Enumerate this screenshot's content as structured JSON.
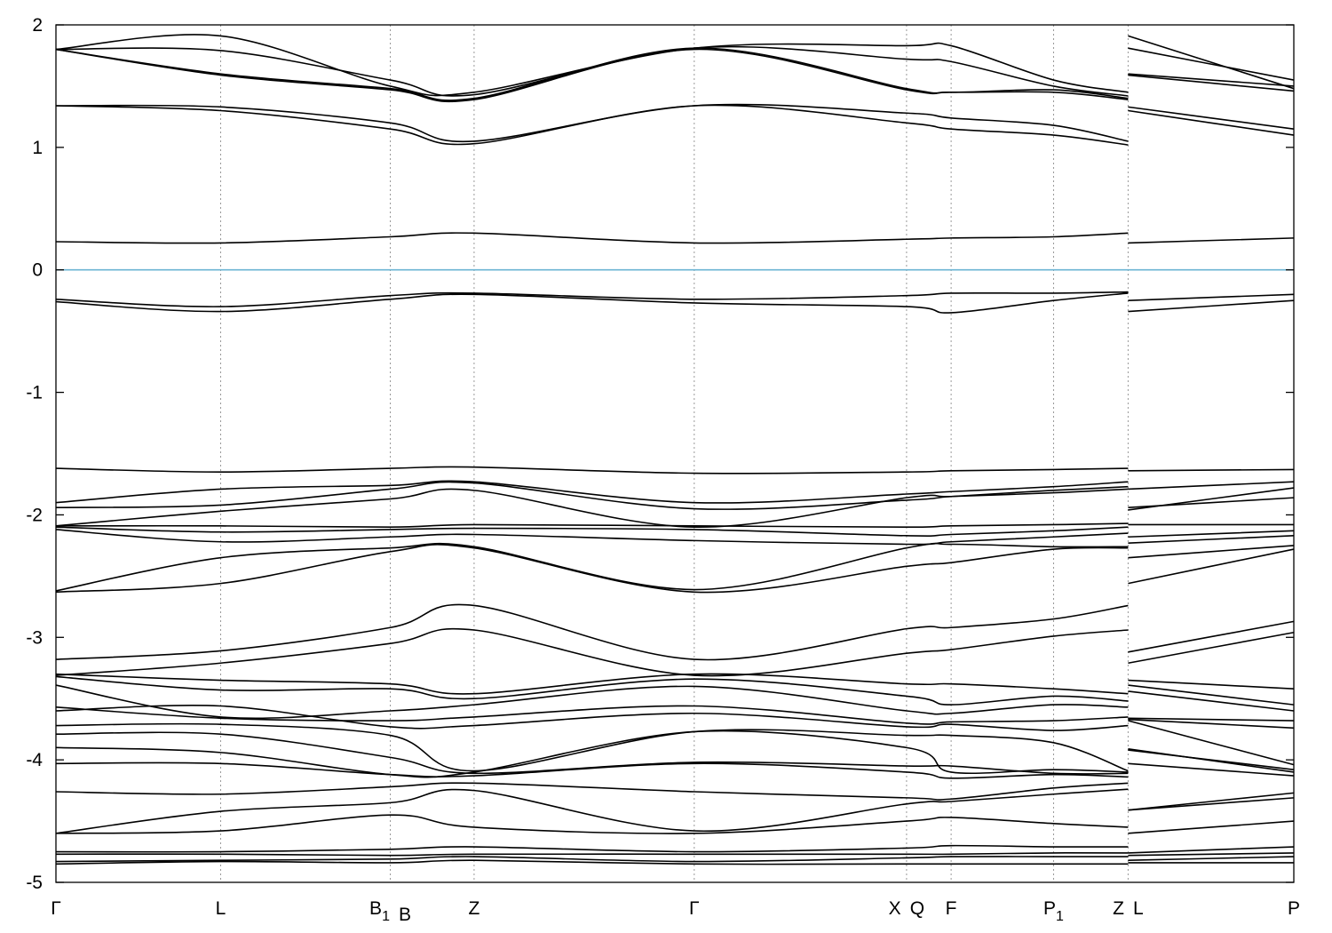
{
  "chart_data": {
    "type": "line",
    "title": "",
    "xlabel": "",
    "ylabel": "",
    "ylim": [
      -5,
      2
    ],
    "xlim": [
      0,
      25.25
    ],
    "grid": "vertical dotted lines at high-symmetry k-points",
    "y_ticks": [
      2,
      1,
      0,
      -1,
      -2,
      -3,
      -4,
      -5
    ],
    "y_tick_labels": [
      "2",
      "1",
      "0",
      "-1",
      "-2",
      "-3",
      "-4",
      "-5"
    ],
    "kpoints": [
      {
        "label": "Γ",
        "sub": "",
        "x": 0
      },
      {
        "label": "L",
        "sub": "",
        "x": 3.36
      },
      {
        "label": "B",
        "sub": "1",
        "x": 6.82
      },
      {
        "label": "B",
        "sub": "",
        "x": 6.82
      },
      {
        "label": "Z",
        "sub": "",
        "x": 8.53
      },
      {
        "label": "Γ",
        "sub": "",
        "x": 13.02
      },
      {
        "label": "X",
        "sub": "",
        "x": 17.35
      },
      {
        "label": "Q",
        "sub": "",
        "x": 17.35
      },
      {
        "label": "F",
        "sub": "",
        "x": 18.26
      },
      {
        "label": "P",
        "sub": "1",
        "x": 20.35
      },
      {
        "label": "Z",
        "sub": "",
        "x": 21.87
      },
      {
        "label": "L",
        "sub": "",
        "x": 21.87
      },
      {
        "label": "P",
        "sub": "",
        "x": 25.25
      }
    ],
    "fermi_level": {
      "y": 0,
      "color": "#6bb4d3"
    },
    "band_color": "#000000",
    "segment1_x": [
      0,
      3.36,
      6.82,
      8.53,
      13.02,
      17.35,
      18.26,
      20.35,
      21.87
    ],
    "segment2_x": [
      21.87,
      25.25
    ],
    "series": [
      {
        "s1": [
          1.8,
          1.91,
          1.5,
          1.45,
          1.81,
          1.83,
          1.83,
          1.55,
          1.45
        ],
        "s2": [
          1.91,
          1.48
        ]
      },
      {
        "s1": [
          1.8,
          1.79,
          1.55,
          1.43,
          1.81,
          1.72,
          1.7,
          1.5,
          1.42
        ],
        "s2": [
          1.81,
          1.55
        ]
      },
      {
        "s1": [
          1.8,
          1.6,
          1.48,
          1.4,
          1.81,
          1.48,
          1.45,
          1.47,
          1.4
        ],
        "s2": [
          1.6,
          1.5
        ]
      },
      {
        "s1": [
          1.8,
          1.59,
          1.47,
          1.39,
          1.8,
          1.47,
          1.45,
          1.45,
          1.39
        ],
        "s2": [
          1.59,
          1.46
        ]
      },
      {
        "s1": [
          1.34,
          1.33,
          1.2,
          1.05,
          1.34,
          1.28,
          1.24,
          1.18,
          1.05
        ],
        "s2": [
          1.33,
          1.15
        ]
      },
      {
        "s1": [
          1.34,
          1.3,
          1.15,
          1.03,
          1.34,
          1.2,
          1.15,
          1.1,
          1.02
        ],
        "s2": [
          1.3,
          1.1
        ]
      },
      {
        "s1": [
          0.23,
          0.22,
          0.27,
          0.3,
          0.22,
          0.25,
          0.26,
          0.27,
          0.3
        ],
        "s2": [
          0.22,
          0.26
        ]
      },
      {
        "s1": [
          -0.24,
          -0.3,
          -0.21,
          -0.19,
          -0.24,
          -0.21,
          -0.19,
          -0.19,
          -0.18
        ],
        "s2": [
          -0.25,
          -0.2
        ]
      },
      {
        "s1": [
          -0.26,
          -0.34,
          -0.24,
          -0.2,
          -0.27,
          -0.3,
          -0.35,
          -0.25,
          -0.19
        ],
        "s2": [
          -0.34,
          -0.25
        ]
      },
      {
        "s1": [
          -1.62,
          -1.65,
          -1.62,
          -1.61,
          -1.66,
          -1.65,
          -1.64,
          -1.63,
          -1.62
        ],
        "s2": [
          -1.64,
          -1.63
        ]
      },
      {
        "s1": [
          -1.9,
          -1.79,
          -1.76,
          -1.73,
          -1.9,
          -1.83,
          -1.81,
          -1.77,
          -1.73
        ],
        "s2": [
          -1.79,
          -1.73
        ]
      },
      {
        "s1": [
          -1.94,
          -1.92,
          -1.79,
          -1.74,
          -1.95,
          -1.88,
          -1.85,
          -1.8,
          -1.77
        ],
        "s2": [
          -1.96,
          -1.78
        ]
      },
      {
        "s1": [
          -2.09,
          -1.97,
          -1.87,
          -1.8,
          -2.1,
          -1.86,
          -1.85,
          -1.82,
          -1.79
        ],
        "s2": [
          -1.94,
          -1.86
        ]
      },
      {
        "s1": [
          -2.09,
          -2.09,
          -2.1,
          -2.08,
          -2.09,
          -2.1,
          -2.09,
          -2.08,
          -2.07
        ],
        "s2": [
          -2.08,
          -2.08
        ]
      },
      {
        "s1": [
          -2.1,
          -2.14,
          -2.12,
          -2.11,
          -2.12,
          -2.17,
          -2.16,
          -2.13,
          -2.1
        ],
        "s2": [
          -2.18,
          -2.13
        ]
      },
      {
        "s1": [
          -2.12,
          -2.22,
          -2.18,
          -2.16,
          -2.21,
          -2.24,
          -2.22,
          -2.18,
          -2.15
        ],
        "s2": [
          -2.23,
          -2.17
        ]
      },
      {
        "s1": [
          -2.62,
          -2.35,
          -2.27,
          -2.26,
          -2.61,
          -2.27,
          -2.24,
          -2.26,
          -2.26
        ],
        "s2": [
          -2.35,
          -2.25
        ]
      },
      {
        "s1": [
          -2.63,
          -2.56,
          -2.3,
          -2.27,
          -2.63,
          -2.42,
          -2.39,
          -2.28,
          -2.27
        ],
        "s2": [
          -2.56,
          -2.28
        ]
      },
      {
        "s1": [
          -3.18,
          -3.11,
          -2.92,
          -2.74,
          -3.18,
          -2.93,
          -2.92,
          -2.85,
          -2.74
        ],
        "s2": [
          -3.12,
          -2.87
        ]
      },
      {
        "s1": [
          -3.31,
          -3.21,
          -3.05,
          -2.94,
          -3.31,
          -3.13,
          -3.1,
          -2.99,
          -2.94
        ],
        "s2": [
          -3.21,
          -2.96
        ]
      },
      {
        "s1": [
          -3.3,
          -3.35,
          -3.38,
          -3.46,
          -3.3,
          -3.38,
          -3.38,
          -3.42,
          -3.46
        ],
        "s2": [
          -3.35,
          -3.42
        ]
      },
      {
        "s1": [
          -3.32,
          -3.43,
          -3.42,
          -3.5,
          -3.34,
          -3.48,
          -3.55,
          -3.48,
          -3.52
        ],
        "s2": [
          -3.39,
          -3.55
        ]
      },
      {
        "s1": [
          -3.39,
          -3.65,
          -3.6,
          -3.55,
          -3.4,
          -3.6,
          -3.62,
          -3.55,
          -3.57
        ],
        "s2": [
          -3.44,
          -3.6
        ]
      },
      {
        "s1": [
          -3.57,
          -3.66,
          -3.68,
          -3.65,
          -3.56,
          -3.7,
          -3.69,
          -3.68,
          -3.65
        ],
        "s2": [
          -3.66,
          -3.68
        ]
      },
      {
        "s1": [
          -3.6,
          -3.56,
          -3.73,
          -3.72,
          -3.62,
          -3.73,
          -3.71,
          -3.76,
          -3.72
        ],
        "s2": [
          -3.67,
          -3.74
        ]
      },
      {
        "s1": [
          -3.72,
          -3.71,
          -3.8,
          -4.09,
          -3.77,
          -3.8,
          -3.8,
          -3.86,
          -4.09
        ],
        "s2": [
          -3.68,
          -4.04
        ]
      },
      {
        "s1": [
          -3.79,
          -3.79,
          -3.98,
          -4.11,
          -4.02,
          -4.05,
          -4.05,
          -4.11,
          -4.11
        ],
        "s2": [
          -3.91,
          -4.1
        ]
      },
      {
        "s1": [
          -3.9,
          -3.94,
          -4.12,
          -4.1,
          -3.77,
          -3.9,
          -4.1,
          -4.08,
          -4.1
        ],
        "s2": [
          -3.92,
          -4.08
        ]
      },
      {
        "s1": [
          -4.03,
          -4.03,
          -4.12,
          -4.13,
          -4.03,
          -4.1,
          -4.15,
          -4.12,
          -4.14
        ],
        "s2": [
          -4.03,
          -4.13
        ]
      },
      {
        "s1": [
          -4.26,
          -4.28,
          -4.22,
          -4.19,
          -4.26,
          -4.31,
          -4.32,
          -4.23,
          -4.19
        ],
        "s2": [
          -4.41,
          -4.27
        ]
      },
      {
        "s1": [
          -4.6,
          -4.42,
          -4.35,
          -4.25,
          -4.58,
          -4.36,
          -4.34,
          -4.28,
          -4.24
        ],
        "s2": [
          -4.41,
          -4.31
        ]
      },
      {
        "s1": [
          -4.6,
          -4.58,
          -4.45,
          -4.55,
          -4.6,
          -4.5,
          -4.47,
          -4.52,
          -4.55
        ],
        "s2": [
          -4.6,
          -4.5
        ]
      },
      {
        "s1": [
          -4.75,
          -4.75,
          -4.73,
          -4.71,
          -4.75,
          -4.72,
          -4.7,
          -4.71,
          -4.71
        ],
        "s2": [
          -4.76,
          -4.71
        ]
      },
      {
        "s1": [
          -4.77,
          -4.77,
          -4.78,
          -4.77,
          -4.77,
          -4.77,
          -4.77,
          -4.76,
          -4.76
        ],
        "s2": [
          -4.78,
          -4.76
        ]
      },
      {
        "s1": [
          -4.83,
          -4.82,
          -4.81,
          -4.79,
          -4.83,
          -4.8,
          -4.79,
          -4.79,
          -4.79
        ],
        "s2": [
          -4.82,
          -4.79
        ]
      },
      {
        "s1": [
          -4.85,
          -4.83,
          -4.84,
          -4.82,
          -4.85,
          -4.85,
          -4.85,
          -4.85,
          -4.85
        ],
        "s2": [
          -4.84,
          -4.84
        ]
      }
    ]
  }
}
